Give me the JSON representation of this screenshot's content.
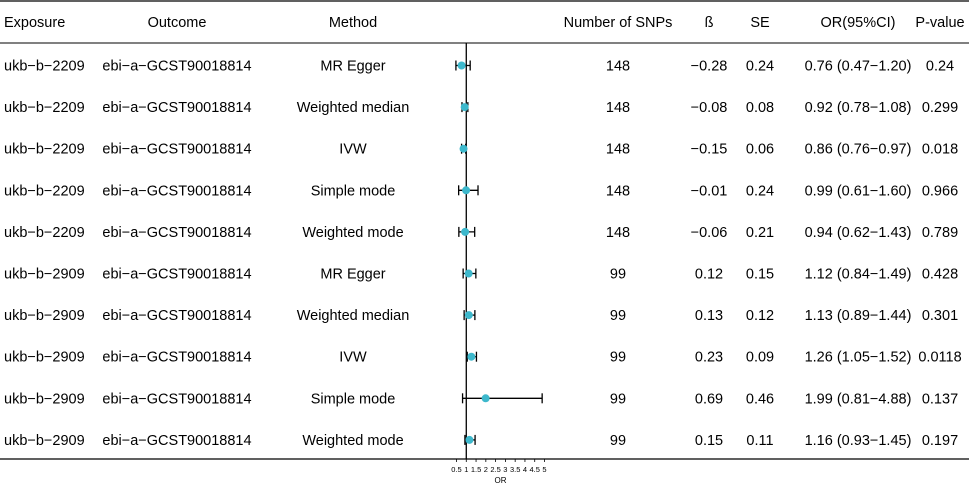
{
  "columns": {
    "exposure": "Exposure",
    "outcome": "Outcome",
    "method": "Method",
    "nsnps": "Number of SNPs",
    "beta": "ß",
    "se": "SE",
    "or": "OR(95%CI)",
    "pvalue": "P-value"
  },
  "rows": [
    {
      "exposure": "ukb−b−2209",
      "outcome": "ebi−a−GCST90018814",
      "method": "MR Egger",
      "nsnps": "148",
      "beta": "−0.28",
      "se": "0.24",
      "or_text": "0.76 (0.47−1.20)",
      "pvalue": "0.24"
    },
    {
      "exposure": "ukb−b−2209",
      "outcome": "ebi−a−GCST90018814",
      "method": "Weighted median",
      "nsnps": "148",
      "beta": "−0.08",
      "se": "0.08",
      "or_text": "0.92 (0.78−1.08)",
      "pvalue": "0.299"
    },
    {
      "exposure": "ukb−b−2209",
      "outcome": "ebi−a−GCST90018814",
      "method": "IVW",
      "nsnps": "148",
      "beta": "−0.15",
      "se": "0.06",
      "or_text": "0.86 (0.76−0.97)",
      "pvalue": "0.018"
    },
    {
      "exposure": "ukb−b−2209",
      "outcome": "ebi−a−GCST90018814",
      "method": "Simple mode",
      "nsnps": "148",
      "beta": "−0.01",
      "se": "0.24",
      "or_text": "0.99 (0.61−1.60)",
      "pvalue": "0.966"
    },
    {
      "exposure": "ukb−b−2209",
      "outcome": "ebi−a−GCST90018814",
      "method": "Weighted mode",
      "nsnps": "148",
      "beta": "−0.06",
      "se": "0.21",
      "or_text": "0.94 (0.62−1.43)",
      "pvalue": "0.789"
    },
    {
      "exposure": "ukb−b−2909",
      "outcome": "ebi−a−GCST90018814",
      "method": "MR Egger",
      "nsnps": "99",
      "beta": "0.12",
      "se": "0.15",
      "or_text": "1.12 (0.84−1.49)",
      "pvalue": "0.428"
    },
    {
      "exposure": "ukb−b−2909",
      "outcome": "ebi−a−GCST90018814",
      "method": "Weighted median",
      "nsnps": "99",
      "beta": "0.13",
      "se": "0.12",
      "or_text": "1.13 (0.89−1.44)",
      "pvalue": "0.301"
    },
    {
      "exposure": "ukb−b−2909",
      "outcome": "ebi−a−GCST90018814",
      "method": "IVW",
      "nsnps": "99",
      "beta": "0.23",
      "se": "0.09",
      "or_text": "1.26 (1.05−1.52)",
      "pvalue": "0.0118"
    },
    {
      "exposure": "ukb−b−2909",
      "outcome": "ebi−a−GCST90018814",
      "method": "Simple mode",
      "nsnps": "99",
      "beta": "0.69",
      "se": "0.46",
      "or_text": "1.99 (0.81−4.88)",
      "pvalue": "0.137"
    },
    {
      "exposure": "ukb−b−2909",
      "outcome": "ebi−a−GCST90018814",
      "method": "Weighted mode",
      "nsnps": "99",
      "beta": "0.15",
      "se": "0.11",
      "or_text": "1.16 (0.93−1.45)",
      "pvalue": "0.197"
    }
  ],
  "chart_data": {
    "type": "forest",
    "xlabel": "OR",
    "xlim": [
      0.5,
      5
    ],
    "reference_line": 1,
    "x_ticks": [
      0.5,
      1,
      1.5,
      2,
      2.5,
      3,
      3.5,
      4,
      4.5,
      5
    ],
    "x_tick_labels": [
      "0.5",
      "1",
      "1.5",
      "2",
      "2.5",
      "3",
      "3.5",
      "4",
      "4.5",
      "5"
    ],
    "point_color": "#3db8cc",
    "series": [
      {
        "or": 0.76,
        "lower": 0.47,
        "upper": 1.2
      },
      {
        "or": 0.92,
        "lower": 0.78,
        "upper": 1.08
      },
      {
        "or": 0.86,
        "lower": 0.76,
        "upper": 0.97
      },
      {
        "or": 0.99,
        "lower": 0.61,
        "upper": 1.6
      },
      {
        "or": 0.94,
        "lower": 0.62,
        "upper": 1.43
      },
      {
        "or": 1.12,
        "lower": 0.84,
        "upper": 1.49
      },
      {
        "or": 1.13,
        "lower": 0.89,
        "upper": 1.44
      },
      {
        "or": 1.26,
        "lower": 1.05,
        "upper": 1.52
      },
      {
        "or": 1.99,
        "lower": 0.81,
        "upper": 4.88
      },
      {
        "or": 1.16,
        "lower": 0.93,
        "upper": 1.45
      }
    ]
  }
}
